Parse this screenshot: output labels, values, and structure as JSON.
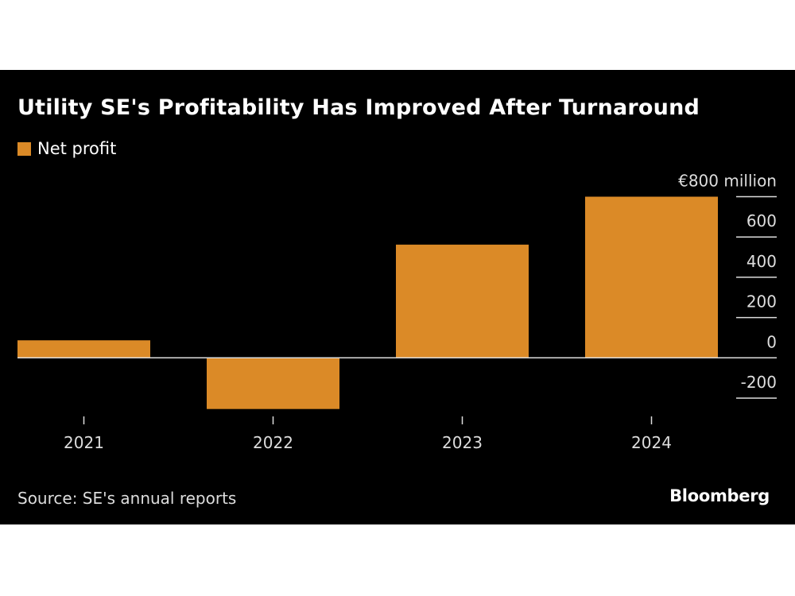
{
  "chart_data": {
    "type": "bar",
    "title": "Utility SE's Profitability Has Improved After Turnaround",
    "categories": [
      "2021",
      "2022",
      "2023",
      "2024"
    ],
    "series": [
      {
        "name": "Net profit",
        "values": [
          87,
          -254,
          562,
          800
        ]
      }
    ],
    "unit_label": "€800 million",
    "yticks": [
      -200,
      0,
      200,
      400,
      600,
      800
    ],
    "ytick_labels": [
      "-200",
      "0",
      "200",
      "400",
      "600",
      "€800 million"
    ],
    "ylim": [
      -250,
      800
    ],
    "y_axis_side": "right",
    "legend_position": "top-left",
    "grid": true,
    "bar_color": "#DB8A27",
    "source": "Source: SE's annual reports"
  },
  "branding": {
    "logo": "Bloomberg"
  },
  "colors": {
    "background": "#000000",
    "bar": "#DB8A27",
    "text": "#FFFFFF"
  }
}
